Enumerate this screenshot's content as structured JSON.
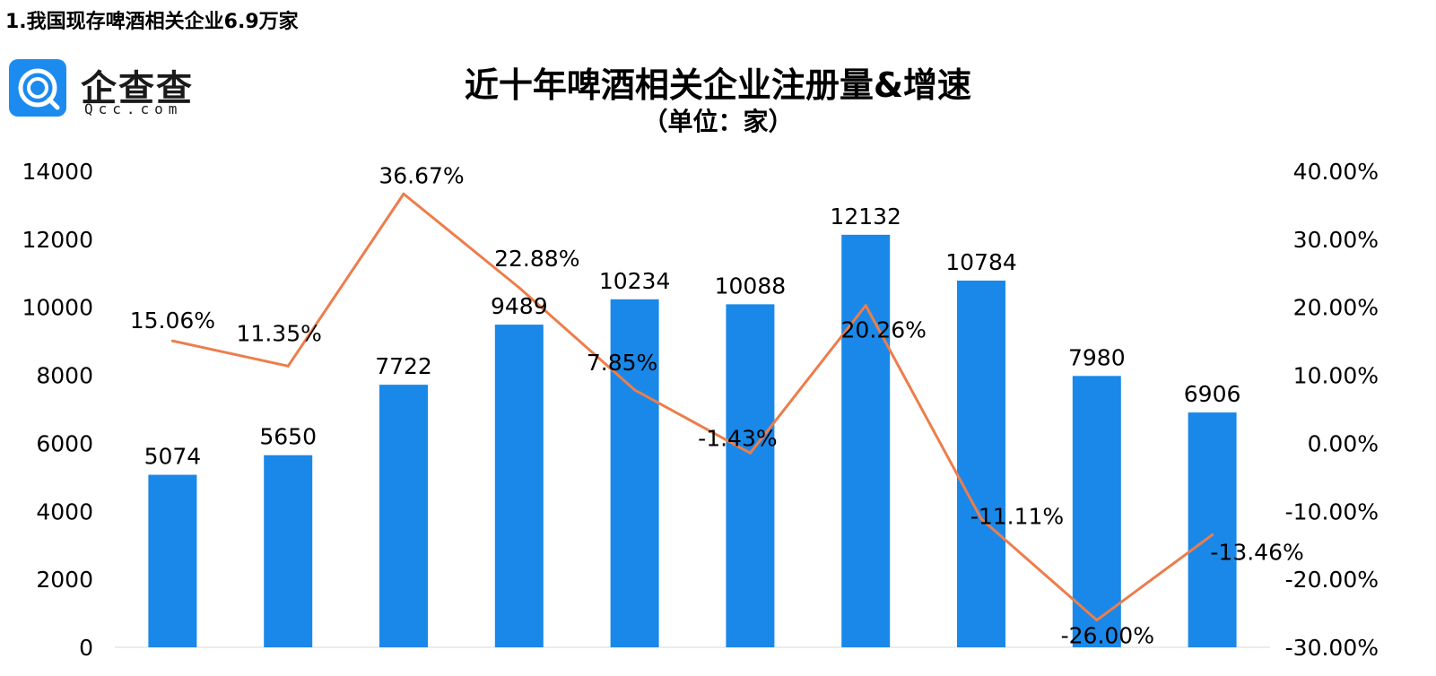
{
  "heading": "1.我国现存啤酒相关企业6.9万家",
  "logo": {
    "name_cn": "企查查",
    "name_en": "Qcc.com",
    "icon": "qcc-logo-icon"
  },
  "colors": {
    "bar": "#1a88e8",
    "line": "#ed7d4b",
    "logo": "#1c8bf0"
  },
  "chart_data": {
    "type": "bar",
    "title": "近十年啤酒相关企业注册量&增速",
    "subtitle": "（单位：家）",
    "categories": [
      "",
      "",
      "",
      "",
      "",
      "",
      "",
      "",
      "",
      ""
    ],
    "series": [
      {
        "type": "bar",
        "axis": "left",
        "values": [
          5074,
          5650,
          7722,
          9489,
          10234,
          10088,
          12132,
          10784,
          7980,
          6906
        ],
        "labels": [
          "5074",
          "5650",
          "7722",
          "9489",
          "10234",
          "10088",
          "12132",
          "10784",
          "7980",
          "6906"
        ]
      },
      {
        "type": "line",
        "axis": "right",
        "values": [
          15.06,
          11.35,
          36.67,
          22.88,
          7.85,
          -1.43,
          20.26,
          -11.11,
          -26.0,
          -13.46
        ],
        "labels": [
          "15.06%",
          "11.35%",
          "36.67%",
          "22.88%",
          "7.85%",
          "-1.43%",
          "20.26%",
          "-11.11%",
          "-26.00%",
          "-13.46%"
        ]
      }
    ],
    "y_left": {
      "ylim": [
        0,
        14000
      ],
      "ticks": [
        "0",
        "2000",
        "4000",
        "6000",
        "8000",
        "10000",
        "12000",
        "14000"
      ]
    },
    "y_right": {
      "ylim": [
        -30,
        40
      ],
      "ticks": [
        "-30.00%",
        "-20.00%",
        "-10.00%",
        "0.00%",
        "10.00%",
        "20.00%",
        "30.00%",
        "40.00%"
      ]
    },
    "grid": false,
    "legend": "none"
  }
}
